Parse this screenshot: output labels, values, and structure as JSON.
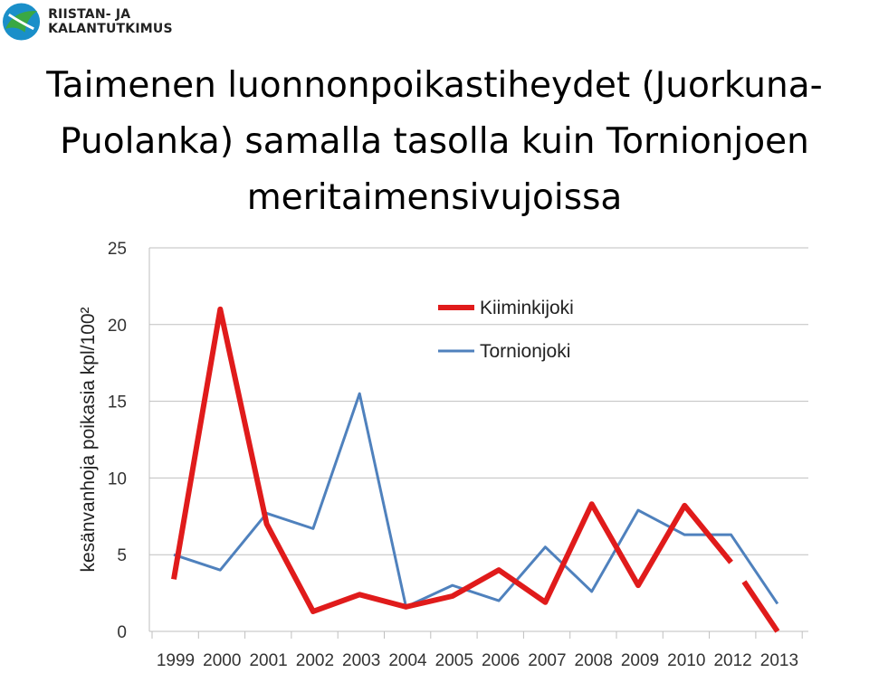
{
  "logo": {
    "text": "RIISTAN- JA KALANTUTKIMUS",
    "icon": "fish-logo-icon",
    "colors": [
      "#1a8fc9",
      "#3aa843"
    ]
  },
  "title_lines": [
    "Taimenen luonnonpoikastiheydet (Juorkuna-",
    "Puolanka) samalla tasolla kuin Tornionjoen",
    "meritaimensivujoissa"
  ],
  "chart_data": {
    "type": "line",
    "ylabel": "kesänvanhoja poikasia kpl/100²",
    "xlabel": "",
    "categories": [
      "1999",
      "2000",
      "2001",
      "2002",
      "2003",
      "2004",
      "2005",
      "2006",
      "2007",
      "2008",
      "2009",
      "2010",
      "2012",
      "2013"
    ],
    "ylim": [
      0,
      25
    ],
    "yticks": [
      0,
      5,
      10,
      15,
      20,
      25
    ],
    "grid": true,
    "legend": "top-right",
    "series": [
      {
        "name": "Kiiminkijoki",
        "color": "#e01b1b",
        "width": 6,
        "values": [
          3.4,
          21.0,
          7.0,
          1.3,
          2.4,
          1.6,
          2.3,
          4.0,
          1.9,
          8.3,
          3.0,
          8.2,
          4.5,
          0.0
        ],
        "dashed_segment_index": 12
      },
      {
        "name": "Tornionjoki",
        "color": "#4f81bd",
        "width": 3,
        "values": [
          5.0,
          4.0,
          7.7,
          6.7,
          15.5,
          1.6,
          3.0,
          2.0,
          5.5,
          2.6,
          7.9,
          6.3,
          6.3,
          1.8
        ]
      }
    ]
  }
}
